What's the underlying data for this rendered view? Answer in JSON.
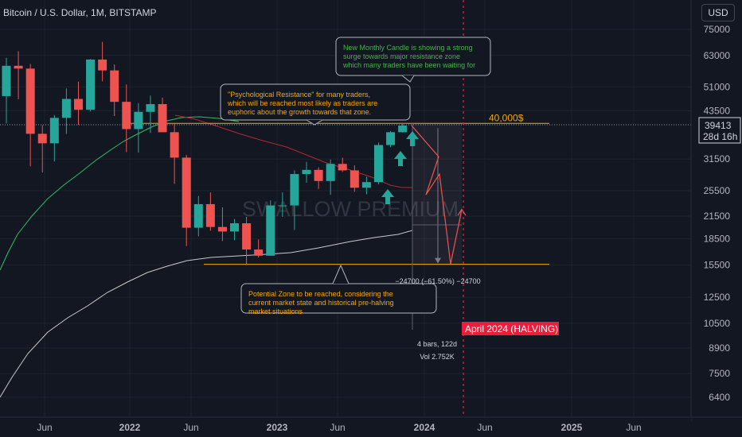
{
  "header": {
    "symbol": "Bitcoin / U.S. Dollar, 1M, BITSTAMP",
    "currency_button": "USD"
  },
  "price_axis": {
    "ticks": [
      "75000",
      "63000",
      "51000",
      "43500",
      "31500",
      "25500",
      "21500",
      "18500",
      "15500",
      "12500",
      "10500",
      "8900",
      "7500",
      "6400"
    ],
    "current_price": "39413",
    "countdown": "28d 16h"
  },
  "time_axis": {
    "ticks": [
      "Jun",
      "2022",
      "Jun",
      "2023",
      "Jun",
      "2024",
      "Jun",
      "2025",
      "Jun"
    ]
  },
  "annotations": {
    "watermark": "SWALLOW PREMIUM",
    "level_label": "40,000$",
    "halving_label": "April 2024 (HALVING)",
    "measure_label": "−24700 (−61.50%) −24700",
    "bars_label": "4 bars, 122d",
    "vol_label": "Vol 2.752K",
    "callout_candle": "New Monthly Candle is showing a strong surge towards major resistance zone which many traders have been waiting for",
    "callout_resistance": "\"Psychological Resistance\" for many traders, which will be reached most likely as traders are euphoric about the growth towards that zone.",
    "callout_zone": "Potential Zone to be reached, considering the current market state and historical pre-halving market situations"
  },
  "colors": {
    "background": "#131722",
    "up": "#26a69a",
    "down": "#ef5350",
    "level": "#f7a600",
    "ma_green": "#2ebd62",
    "ma_red": "#b22833",
    "ma_white": "#c9c9c9"
  },
  "chart_data": {
    "type": "candlestick",
    "symbol": "BTCUSD",
    "interval": "1M",
    "scale": "log",
    "candles": [
      {
        "o": 48000,
        "h": 62000,
        "l": 40000,
        "c": 58800
      },
      {
        "o": 58800,
        "h": 64800,
        "l": 47000,
        "c": 57700
      },
      {
        "o": 57700,
        "h": 59500,
        "l": 30000,
        "c": 37300
      },
      {
        "o": 37300,
        "h": 39500,
        "l": 28800,
        "c": 35000
      },
      {
        "o": 35000,
        "h": 42300,
        "l": 31000,
        "c": 41500
      },
      {
        "o": 41500,
        "h": 50500,
        "l": 37300,
        "c": 47100
      },
      {
        "o": 47100,
        "h": 52900,
        "l": 39600,
        "c": 43800
      },
      {
        "o": 43800,
        "h": 61500,
        "l": 43300,
        "c": 61300
      },
      {
        "o": 61300,
        "h": 69000,
        "l": 53000,
        "c": 57000
      },
      {
        "o": 57000,
        "h": 59300,
        "l": 42000,
        "c": 46200
      },
      {
        "o": 46200,
        "h": 51900,
        "l": 33000,
        "c": 38500
      },
      {
        "o": 38500,
        "h": 45800,
        "l": 32900,
        "c": 43200
      },
      {
        "o": 43200,
        "h": 48200,
        "l": 37500,
        "c": 45500
      },
      {
        "o": 45500,
        "h": 47500,
        "l": 37700,
        "c": 37700
      },
      {
        "o": 37700,
        "h": 40000,
        "l": 26700,
        "c": 31800
      },
      {
        "o": 31800,
        "h": 32400,
        "l": 17600,
        "c": 19900
      },
      {
        "o": 19900,
        "h": 24600,
        "l": 18800,
        "c": 23300
      },
      {
        "o": 23300,
        "h": 25200,
        "l": 19500,
        "c": 20000
      },
      {
        "o": 20000,
        "h": 22800,
        "l": 18200,
        "c": 19400
      },
      {
        "o": 19400,
        "h": 21100,
        "l": 18300,
        "c": 20500
      },
      {
        "o": 20500,
        "h": 21400,
        "l": 15500,
        "c": 17200
      },
      {
        "o": 17200,
        "h": 18400,
        "l": 16300,
        "c": 16500
      },
      {
        "o": 16500,
        "h": 23900,
        "l": 16500,
        "c": 23100
      },
      {
        "o": 23100,
        "h": 25200,
        "l": 21400,
        "c": 23100
      },
      {
        "o": 23100,
        "h": 29200,
        "l": 19600,
        "c": 28500
      },
      {
        "o": 28500,
        "h": 30900,
        "l": 26900,
        "c": 29300
      },
      {
        "o": 29300,
        "h": 29800,
        "l": 25800,
        "c": 27200
      },
      {
        "o": 27200,
        "h": 31400,
        "l": 24800,
        "c": 30500
      },
      {
        "o": 30500,
        "h": 31800,
        "l": 28900,
        "c": 29200
      },
      {
        "o": 29200,
        "h": 30200,
        "l": 25300,
        "c": 26000
      },
      {
        "o": 26000,
        "h": 28000,
        "l": 24900,
        "c": 27000
      },
      {
        "o": 27000,
        "h": 35200,
        "l": 26600,
        "c": 34600
      },
      {
        "o": 34600,
        "h": 38000,
        "l": 34100,
        "c": 37700
      },
      {
        "o": 37700,
        "h": 40100,
        "l": 37600,
        "c": 39413
      }
    ],
    "projection": [
      39413,
      32000,
      24800,
      28500,
      15600,
      22500
    ],
    "levels": [
      40000,
      15500
    ],
    "ylim": [
      5600,
      84000
    ],
    "x_ticks": [
      "Jun",
      "2022",
      "Jun",
      "2023",
      "Jun",
      "2024",
      "Jun",
      "2025",
      "Jun"
    ],
    "y_ticks": [
      75000,
      63000,
      51000,
      43500,
      31500,
      25500,
      21500,
      18500,
      15500,
      12500,
      10500,
      8900,
      7500,
      6400
    ]
  }
}
